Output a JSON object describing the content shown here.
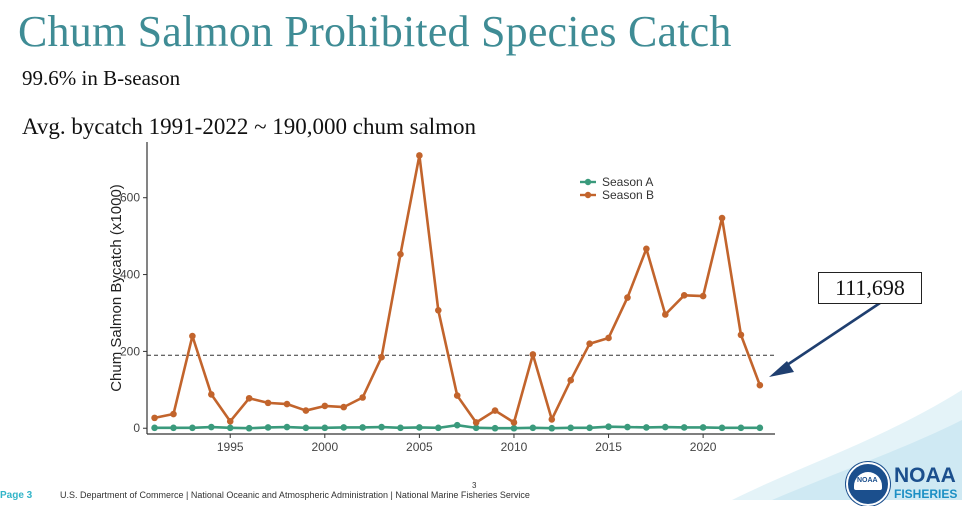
{
  "slide": {
    "title": "Chum Salmon Prohibited Species Catch",
    "bullet1": "99.6% in B-season",
    "bullet2": "Avg. bycatch 1991-2022 ~ 190,000 chum salmon",
    "callout": "111,698",
    "slide_number": "3",
    "footer_page": "Page 3",
    "footer_text": "U.S. Department of Commerce  |  National Oceanic and Atmospheric Administration  |  National Marine Fisheries Service",
    "brand_name": "NOAA",
    "brand_sub": "FISHERIES",
    "seal_text": "NOAA"
  },
  "colors": {
    "title": "#3f8c95",
    "season_a": "#3a9a7c",
    "season_b": "#c2642c",
    "arrow": "#1f3f70",
    "brand": "#1b4f8d"
  },
  "chart_data": {
    "type": "line",
    "title": "",
    "xlabel": "",
    "ylabel": "Chum Salmon Bycatch (x1000)",
    "xlim": [
      1990.6,
      2023.8
    ],
    "ylim": [
      -15,
      745
    ],
    "x_ticks": [
      1995,
      2000,
      2005,
      2010,
      2015,
      2020
    ],
    "y_ticks": [
      0,
      200,
      400,
      600
    ],
    "legend_position": "top-right",
    "x": [
      1991,
      1992,
      1993,
      1994,
      1995,
      1996,
      1997,
      1998,
      1999,
      2000,
      2001,
      2002,
      2003,
      2004,
      2005,
      2006,
      2007,
      2008,
      2009,
      2010,
      2011,
      2012,
      2013,
      2014,
      2015,
      2016,
      2017,
      2018,
      2019,
      2020,
      2021,
      2022,
      2023
    ],
    "series": [
      {
        "name": "Season A",
        "color": "#3a9a7c",
        "values": [
          1,
          1,
          1,
          3,
          1,
          0,
          2,
          3,
          1,
          1,
          2,
          2,
          3,
          1,
          2,
          1,
          8,
          1,
          0,
          0,
          1,
          0,
          1,
          1,
          4,
          3,
          2,
          3,
          2,
          2,
          1,
          1,
          1
        ]
      },
      {
        "name": "Season B",
        "color": "#c2642c",
        "values": [
          27,
          37,
          240,
          88,
          18,
          78,
          66,
          63,
          46,
          58,
          55,
          80,
          185,
          453,
          710,
          307,
          85,
          15,
          46,
          15,
          192,
          23,
          125,
          220,
          235,
          340,
          467,
          296,
          346,
          344,
          547,
          243,
          112
        ]
      }
    ],
    "reference_line": {
      "value": 190,
      "style": "dashed"
    }
  }
}
